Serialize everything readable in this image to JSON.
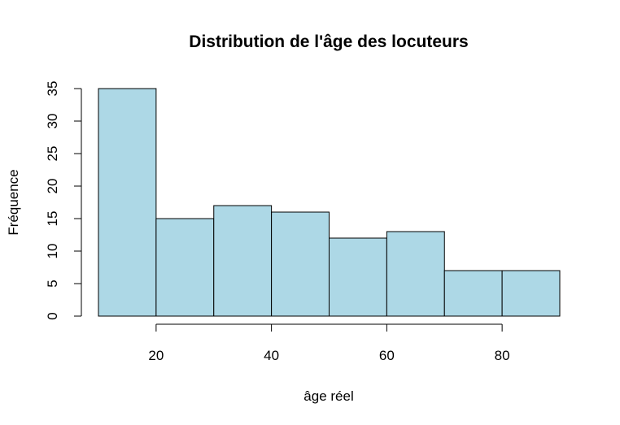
{
  "chart_data": {
    "type": "bar",
    "title": "Distribution de l'âge des locuteurs",
    "xlabel": "âge réel",
    "ylabel": "Fréquence",
    "bins": [
      {
        "from": 10,
        "to": 20,
        "value": 35
      },
      {
        "from": 20,
        "to": 30,
        "value": 15
      },
      {
        "from": 30,
        "to": 40,
        "value": 17
      },
      {
        "from": 40,
        "to": 50,
        "value": 16
      },
      {
        "from": 50,
        "to": 60,
        "value": 12
      },
      {
        "from": 60,
        "to": 70,
        "value": 13
      },
      {
        "from": 70,
        "to": 80,
        "value": 7
      },
      {
        "from": 80,
        "to": 90,
        "value": 7
      }
    ],
    "xticks": [
      20,
      40,
      60,
      80
    ],
    "yticks": [
      0,
      5,
      10,
      15,
      20,
      25,
      30,
      35
    ],
    "xlim": [
      10,
      90
    ],
    "ylim": [
      0,
      35
    ],
    "grid": false,
    "bar_color": "#add8e6"
  }
}
